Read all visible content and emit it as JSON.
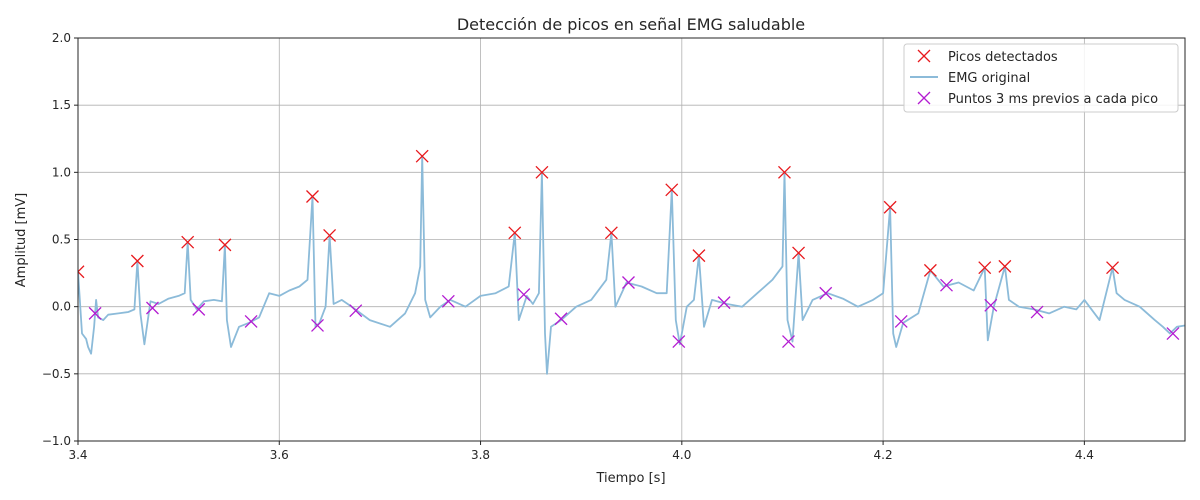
{
  "chart_data": {
    "type": "line",
    "title": "Detección de picos en señal EMG saludable",
    "xlabel": "Tiempo [s]",
    "ylabel": "Amplitud [mV]",
    "xlim": [
      3.4,
      4.5
    ],
    "ylim": [
      -1.0,
      2.0
    ],
    "xticks": [
      3.4,
      3.6,
      3.8,
      4.0,
      4.2,
      4.4
    ],
    "xtick_labels": [
      "3.4",
      "3.6",
      "3.8",
      "4.0",
      "4.2",
      "4.4"
    ],
    "yticks": [
      -1.0,
      -0.5,
      0.0,
      0.5,
      1.0,
      1.5,
      2.0
    ],
    "ytick_labels": [
      "−1.0",
      "−0.5",
      "0.0",
      "0.5",
      "1.0",
      "1.5",
      "2.0"
    ],
    "grid": true,
    "legend_position": "top-right",
    "series": [
      {
        "name": "Picos detectados",
        "kind": "markers",
        "marker": "x",
        "color": "#e8191d",
        "x": [
          3.4,
          3.459,
          3.509,
          3.546,
          3.633,
          3.65,
          3.742,
          3.834,
          3.861,
          3.93,
          3.99,
          4.017,
          4.102,
          4.116,
          4.207,
          4.247,
          4.301,
          4.321,
          4.428
        ],
        "y": [
          0.26,
          0.34,
          0.48,
          0.46,
          0.82,
          0.53,
          1.12,
          0.55,
          1.0,
          0.55,
          0.87,
          0.38,
          1.0,
          0.4,
          0.74,
          0.27,
          0.29,
          0.3,
          0.29
        ]
      },
      {
        "name": "EMG original",
        "kind": "line",
        "color": "#8cbbd9",
        "x": [
          3.4,
          3.404,
          3.408,
          3.41,
          3.413,
          3.416,
          3.418,
          3.42,
          3.425,
          3.43,
          3.44,
          3.45,
          3.456,
          3.459,
          3.462,
          3.466,
          3.472,
          3.48,
          3.49,
          3.5,
          3.506,
          3.509,
          3.512,
          3.518,
          3.525,
          3.535,
          3.543,
          3.546,
          3.548,
          3.552,
          3.56,
          3.57,
          3.58,
          3.59,
          3.6,
          3.61,
          3.62,
          3.628,
          3.633,
          3.636,
          3.64,
          3.646,
          3.65,
          3.654,
          3.662,
          3.672,
          3.69,
          3.71,
          3.725,
          3.735,
          3.74,
          3.742,
          3.745,
          3.75,
          3.76,
          3.77,
          3.785,
          3.8,
          3.815,
          3.828,
          3.834,
          3.838,
          3.846,
          3.852,
          3.858,
          3.861,
          3.864,
          3.866,
          3.87,
          3.88,
          3.895,
          3.91,
          3.925,
          3.93,
          3.934,
          3.945,
          3.96,
          3.975,
          3.985,
          3.99,
          3.994,
          3.998,
          4.005,
          4.012,
          4.017,
          4.022,
          4.03,
          4.045,
          4.06,
          4.075,
          4.09,
          4.1,
          4.102,
          4.105,
          4.11,
          4.116,
          4.12,
          4.13,
          4.145,
          4.16,
          4.175,
          4.19,
          4.2,
          4.207,
          4.21,
          4.213,
          4.22,
          4.235,
          4.247,
          4.26,
          4.275,
          4.29,
          4.301,
          4.304,
          4.31,
          4.321,
          4.325,
          4.335,
          4.35,
          4.365,
          4.38,
          4.392,
          4.4,
          4.415,
          4.428,
          4.432,
          4.44,
          4.455,
          4.47,
          4.478,
          4.485,
          4.492,
          4.5
        ],
        "y": [
          0.26,
          -0.2,
          -0.24,
          -0.3,
          -0.35,
          -0.15,
          0.05,
          -0.08,
          -0.1,
          -0.06,
          -0.05,
          -0.04,
          -0.02,
          0.34,
          -0.05,
          -0.28,
          0.04,
          0.02,
          0.06,
          0.08,
          0.1,
          0.48,
          0.05,
          -0.02,
          0.04,
          0.05,
          0.04,
          0.46,
          -0.1,
          -0.3,
          -0.15,
          -0.12,
          -0.08,
          0.1,
          0.08,
          0.12,
          0.15,
          0.2,
          0.82,
          -0.15,
          -0.12,
          0.0,
          0.53,
          0.02,
          0.05,
          0.0,
          -0.1,
          -0.15,
          -0.05,
          0.1,
          0.3,
          1.12,
          0.05,
          -0.08,
          0.0,
          0.05,
          0.0,
          0.08,
          0.1,
          0.15,
          0.55,
          -0.1,
          0.08,
          0.02,
          0.1,
          1.0,
          -0.2,
          -0.5,
          -0.15,
          -0.1,
          0.0,
          0.05,
          0.2,
          0.55,
          0.0,
          0.18,
          0.15,
          0.1,
          0.1,
          0.87,
          -0.1,
          -0.28,
          0.0,
          0.05,
          0.38,
          -0.15,
          0.05,
          0.02,
          0.0,
          0.1,
          0.2,
          0.3,
          1.0,
          -0.1,
          -0.26,
          0.4,
          -0.1,
          0.05,
          0.1,
          0.06,
          0.0,
          0.05,
          0.1,
          0.74,
          -0.2,
          -0.3,
          -0.12,
          -0.05,
          0.27,
          0.15,
          0.18,
          0.12,
          0.29,
          -0.25,
          0.0,
          0.3,
          0.05,
          0.0,
          -0.02,
          -0.05,
          0.0,
          -0.02,
          0.05,
          -0.1,
          0.29,
          0.1,
          0.05,
          0.0,
          -0.1,
          -0.15,
          -0.2,
          -0.15,
          -0.14
        ]
      },
      {
        "name": "Puntos 3 ms previos a cada pico",
        "kind": "markers",
        "marker": "x",
        "color": "#b31bd1",
        "x": [
          3.417,
          3.474,
          3.52,
          3.572,
          3.638,
          3.676,
          3.768,
          3.843,
          3.88,
          3.947,
          3.997,
          4.042,
          4.106,
          4.143,
          4.218,
          4.263,
          4.307,
          4.353,
          4.488
        ],
        "y": [
          -0.05,
          -0.01,
          -0.02,
          -0.11,
          -0.14,
          -0.03,
          0.04,
          0.09,
          -0.09,
          0.18,
          -0.26,
          0.03,
          -0.26,
          0.1,
          -0.11,
          0.16,
          0.01,
          -0.04,
          -0.2
        ]
      }
    ]
  }
}
